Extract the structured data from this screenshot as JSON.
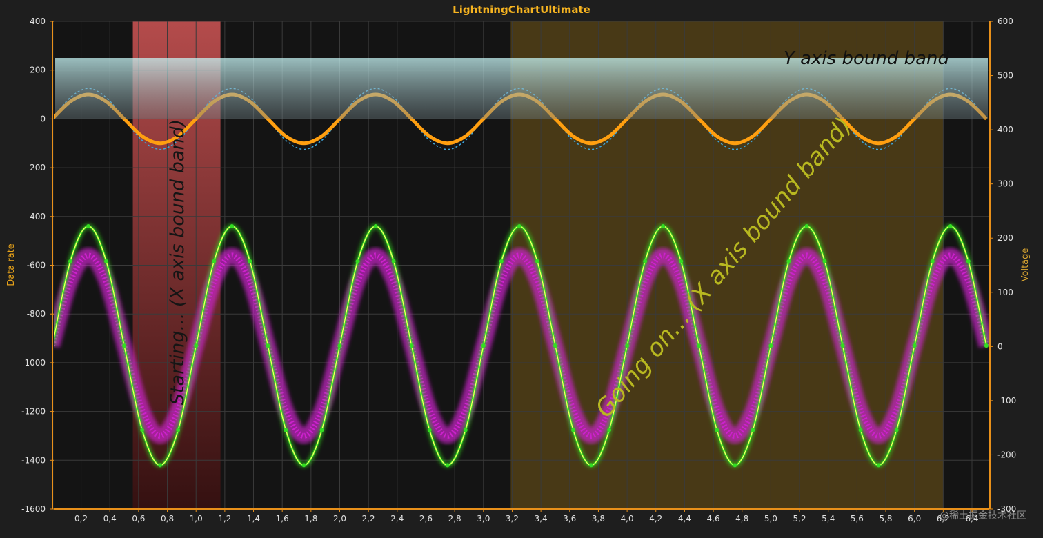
{
  "chart_data": {
    "type": "line",
    "title": "LightningChartUltimate",
    "y_label": "Data rate",
    "y2_label": "Voltage",
    "watermark": "@稀土掘金技术社区",
    "grid": true,
    "xlim": [
      0.01,
      6.52
    ],
    "ylim": [
      -1600,
      400
    ],
    "y2lim": [
      -300,
      600
    ],
    "xticks": [
      {
        "value": 0.2,
        "label": "0,2"
      },
      {
        "value": 0.4,
        "label": "0,4"
      },
      {
        "value": 0.6,
        "label": "0,6"
      },
      {
        "value": 0.8,
        "label": "0,8"
      },
      {
        "value": 1.0,
        "label": "1,0"
      },
      {
        "value": 1.2,
        "label": "1,2"
      },
      {
        "value": 1.4,
        "label": "1,4"
      },
      {
        "value": 1.6,
        "label": "1,6"
      },
      {
        "value": 1.8,
        "label": "1,8"
      },
      {
        "value": 2.0,
        "label": "2,0"
      },
      {
        "value": 2.2,
        "label": "2,2"
      },
      {
        "value": 2.4,
        "label": "2,4"
      },
      {
        "value": 2.6,
        "label": "2,6"
      },
      {
        "value": 2.8,
        "label": "2,8"
      },
      {
        "value": 3.0,
        "label": "3,0"
      },
      {
        "value": 3.2,
        "label": "3,2"
      },
      {
        "value": 3.4,
        "label": "3,4"
      },
      {
        "value": 3.6,
        "label": "3,6"
      },
      {
        "value": 3.8,
        "label": "3,8"
      },
      {
        "value": 4.0,
        "label": "4,0"
      },
      {
        "value": 4.2,
        "label": "4,2"
      },
      {
        "value": 4.4,
        "label": "4,4"
      },
      {
        "value": 4.6,
        "label": "4,6"
      },
      {
        "value": 4.8,
        "label": "4,8"
      },
      {
        "value": 5.0,
        "label": "5,0"
      },
      {
        "value": 5.2,
        "label": "5,2"
      },
      {
        "value": 5.4,
        "label": "5,4"
      },
      {
        "value": 5.6,
        "label": "5,6"
      },
      {
        "value": 5.8,
        "label": "5,8"
      },
      {
        "value": 6.0,
        "label": "6,0"
      },
      {
        "value": 6.2,
        "label": "6,2"
      },
      {
        "value": 6.4,
        "label": "6,4"
      }
    ],
    "yticks": [
      400,
      200,
      0,
      -200,
      -400,
      -600,
      -800,
      -1000,
      -1200,
      -1400,
      -1600
    ],
    "y2ticks": [
      600,
      500,
      400,
      300,
      200,
      100,
      0,
      -100,
      -200,
      -300
    ],
    "bands": [
      {
        "axis": "x",
        "from": 0.56,
        "to": 1.17,
        "color": "#d05555",
        "label": "Starting... (X axis bound band)"
      },
      {
        "axis": "x",
        "from": 3.19,
        "to": 6.2,
        "color": "#6a5218",
        "label": "Going on... (X axis bound band)"
      },
      {
        "axis": "y",
        "from": 0,
        "to": 250,
        "color": "#c8f8f8",
        "label": "Y axis bound band"
      }
    ],
    "x": [
      0,
      0.125,
      0.25,
      0.375,
      0.5,
      0.625,
      0.75,
      0.875,
      1,
      1.125,
      1.25,
      1.375,
      1.5,
      1.625,
      1.75,
      1.875,
      2,
      2.125,
      2.25,
      2.375,
      2.5,
      2.625,
      2.75,
      2.875,
      3,
      3.125,
      3.25,
      3.375,
      3.5,
      3.625,
      3.75,
      3.875,
      4,
      4.125,
      4.25,
      4.375,
      4.5,
      4.625,
      4.75,
      4.875,
      5,
      5.125,
      5.25,
      5.375,
      5.5,
      5.625,
      5.75,
      5.875,
      6,
      6.125,
      6.25,
      6.375,
      6.5
    ],
    "series": [
      {
        "color": "#cc22cc",
        "style": "glow",
        "values": [
          -930,
          -668,
          -560,
          -668,
          -930,
          -1192,
          -1300,
          -1192,
          -930,
          -668,
          -560,
          -668,
          -930,
          -1192,
          -1300,
          -1192,
          -930,
          -668,
          -560,
          -668,
          -930,
          -1192,
          -1300,
          -1192,
          -930,
          -668,
          -560,
          -668,
          -930,
          -1192,
          -1300,
          -1192,
          -930,
          -668,
          -560,
          -668,
          -930,
          -1192,
          -1300,
          -1192,
          -930,
          -668,
          -560,
          -668,
          -930,
          -1192,
          -1300,
          -1192,
          -930,
          -668,
          -560,
          -668,
          -930
        ]
      },
      {
        "color": "#33dd22",
        "style": "markers",
        "values": [
          -930,
          -584,
          -440,
          -584,
          -930,
          -1276,
          -1420,
          -1276,
          -930,
          -584,
          -440,
          -584,
          -930,
          -1276,
          -1420,
          -1276,
          -930,
          -584,
          -440,
          -584,
          -930,
          -1276,
          -1420,
          -1276,
          -930,
          -584,
          -440,
          -584,
          -930,
          -1276,
          -1420,
          -1276,
          -930,
          -584,
          -440,
          -584,
          -930,
          -1276,
          -1420,
          -1276,
          -930,
          -584,
          -440,
          -584,
          -930,
          -1276,
          -1420,
          -1276,
          -930,
          -584,
          -440,
          -584,
          -930
        ]
      },
      {
        "color": "#3fa9e0",
        "style": "dotted",
        "values": [
          0,
          88,
          125,
          88,
          0,
          -88,
          -125,
          -88,
          0,
          88,
          125,
          88,
          0,
          -88,
          -125,
          -88,
          0,
          88,
          125,
          88,
          0,
          -88,
          -125,
          -88,
          0,
          88,
          125,
          88,
          0,
          -88,
          -125,
          -88,
          0,
          88,
          125,
          88,
          0,
          -88,
          -125,
          -88,
          0,
          88,
          125,
          88,
          0,
          -88,
          -125,
          -88,
          0,
          88,
          125,
          88,
          0
        ]
      },
      {
        "color": "#ff9f10",
        "style": "thick",
        "values": [
          0,
          71,
          100,
          71,
          0,
          -71,
          -100,
          -71,
          0,
          71,
          100,
          71,
          0,
          -71,
          -100,
          -71,
          0,
          71,
          100,
          71,
          0,
          -71,
          -100,
          -71,
          0,
          71,
          100,
          71,
          0,
          -71,
          -100,
          -71,
          0,
          71,
          100,
          71,
          0,
          -71,
          -100,
          -71,
          0,
          71,
          100,
          71,
          0,
          -71,
          -100,
          -71,
          0,
          71,
          100,
          71,
          0
        ]
      }
    ]
  }
}
